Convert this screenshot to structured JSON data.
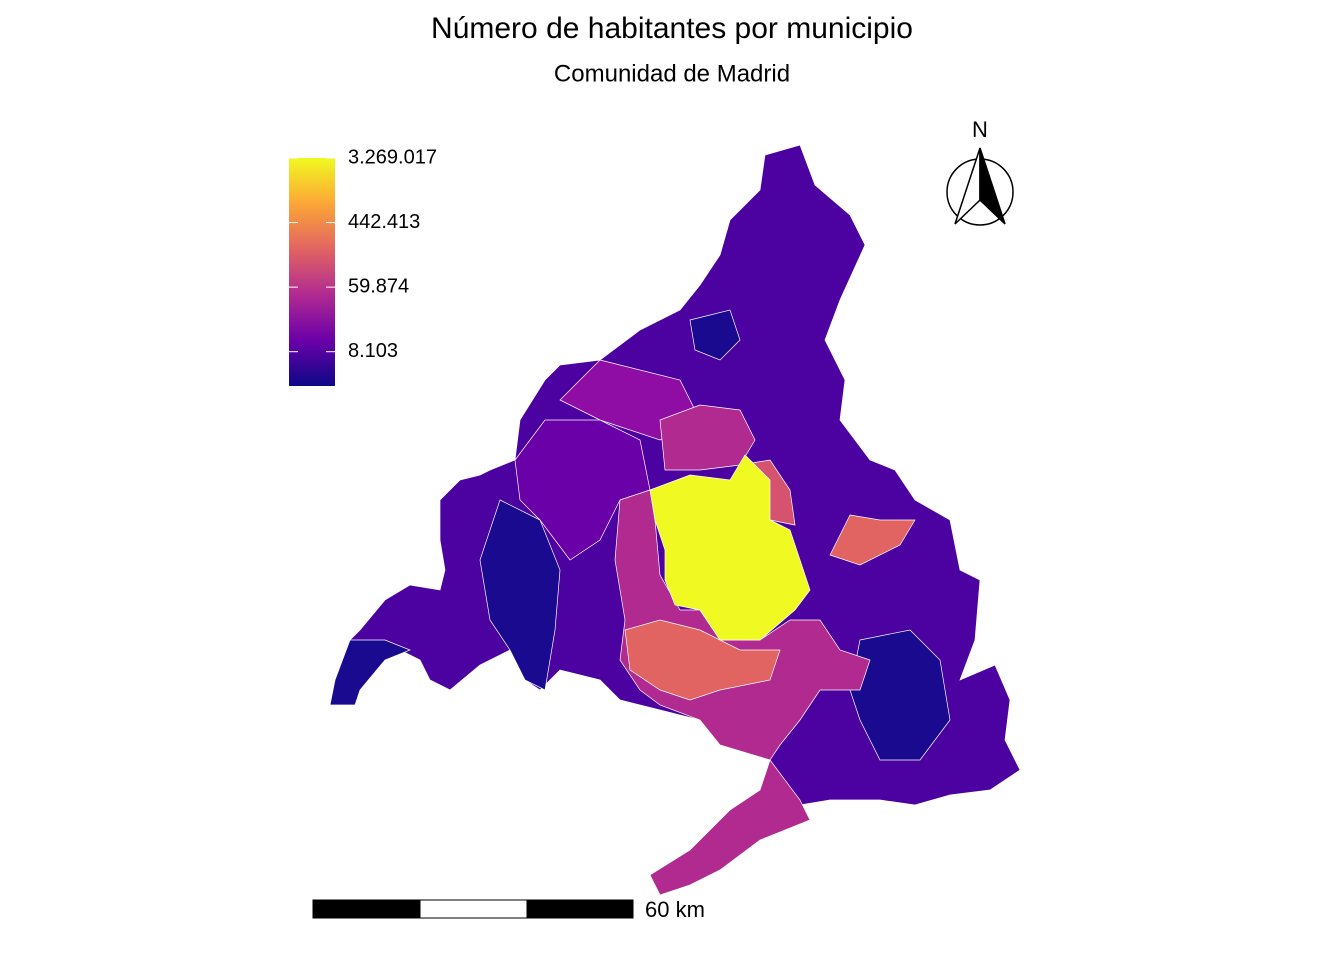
{
  "title": "Número de habitantes por municipio",
  "subtitle": "Comunidad de Madrid",
  "legend": {
    "log": true,
    "range": [
      2800,
      3269017
    ],
    "colors": [
      "#0d0887",
      "#6a00a8",
      "#b12a90",
      "#e16462",
      "#fca636",
      "#f0f921"
    ],
    "ticks": [
      {
        "value": 3269017,
        "label": "3.269.017"
      },
      {
        "value": 442413,
        "label": "442.413"
      },
      {
        "value": 59874,
        "label": "59.874"
      },
      {
        "value": 8103,
        "label": "8.103"
      }
    ]
  },
  "north": "N",
  "scale_bar": "60 km"
}
